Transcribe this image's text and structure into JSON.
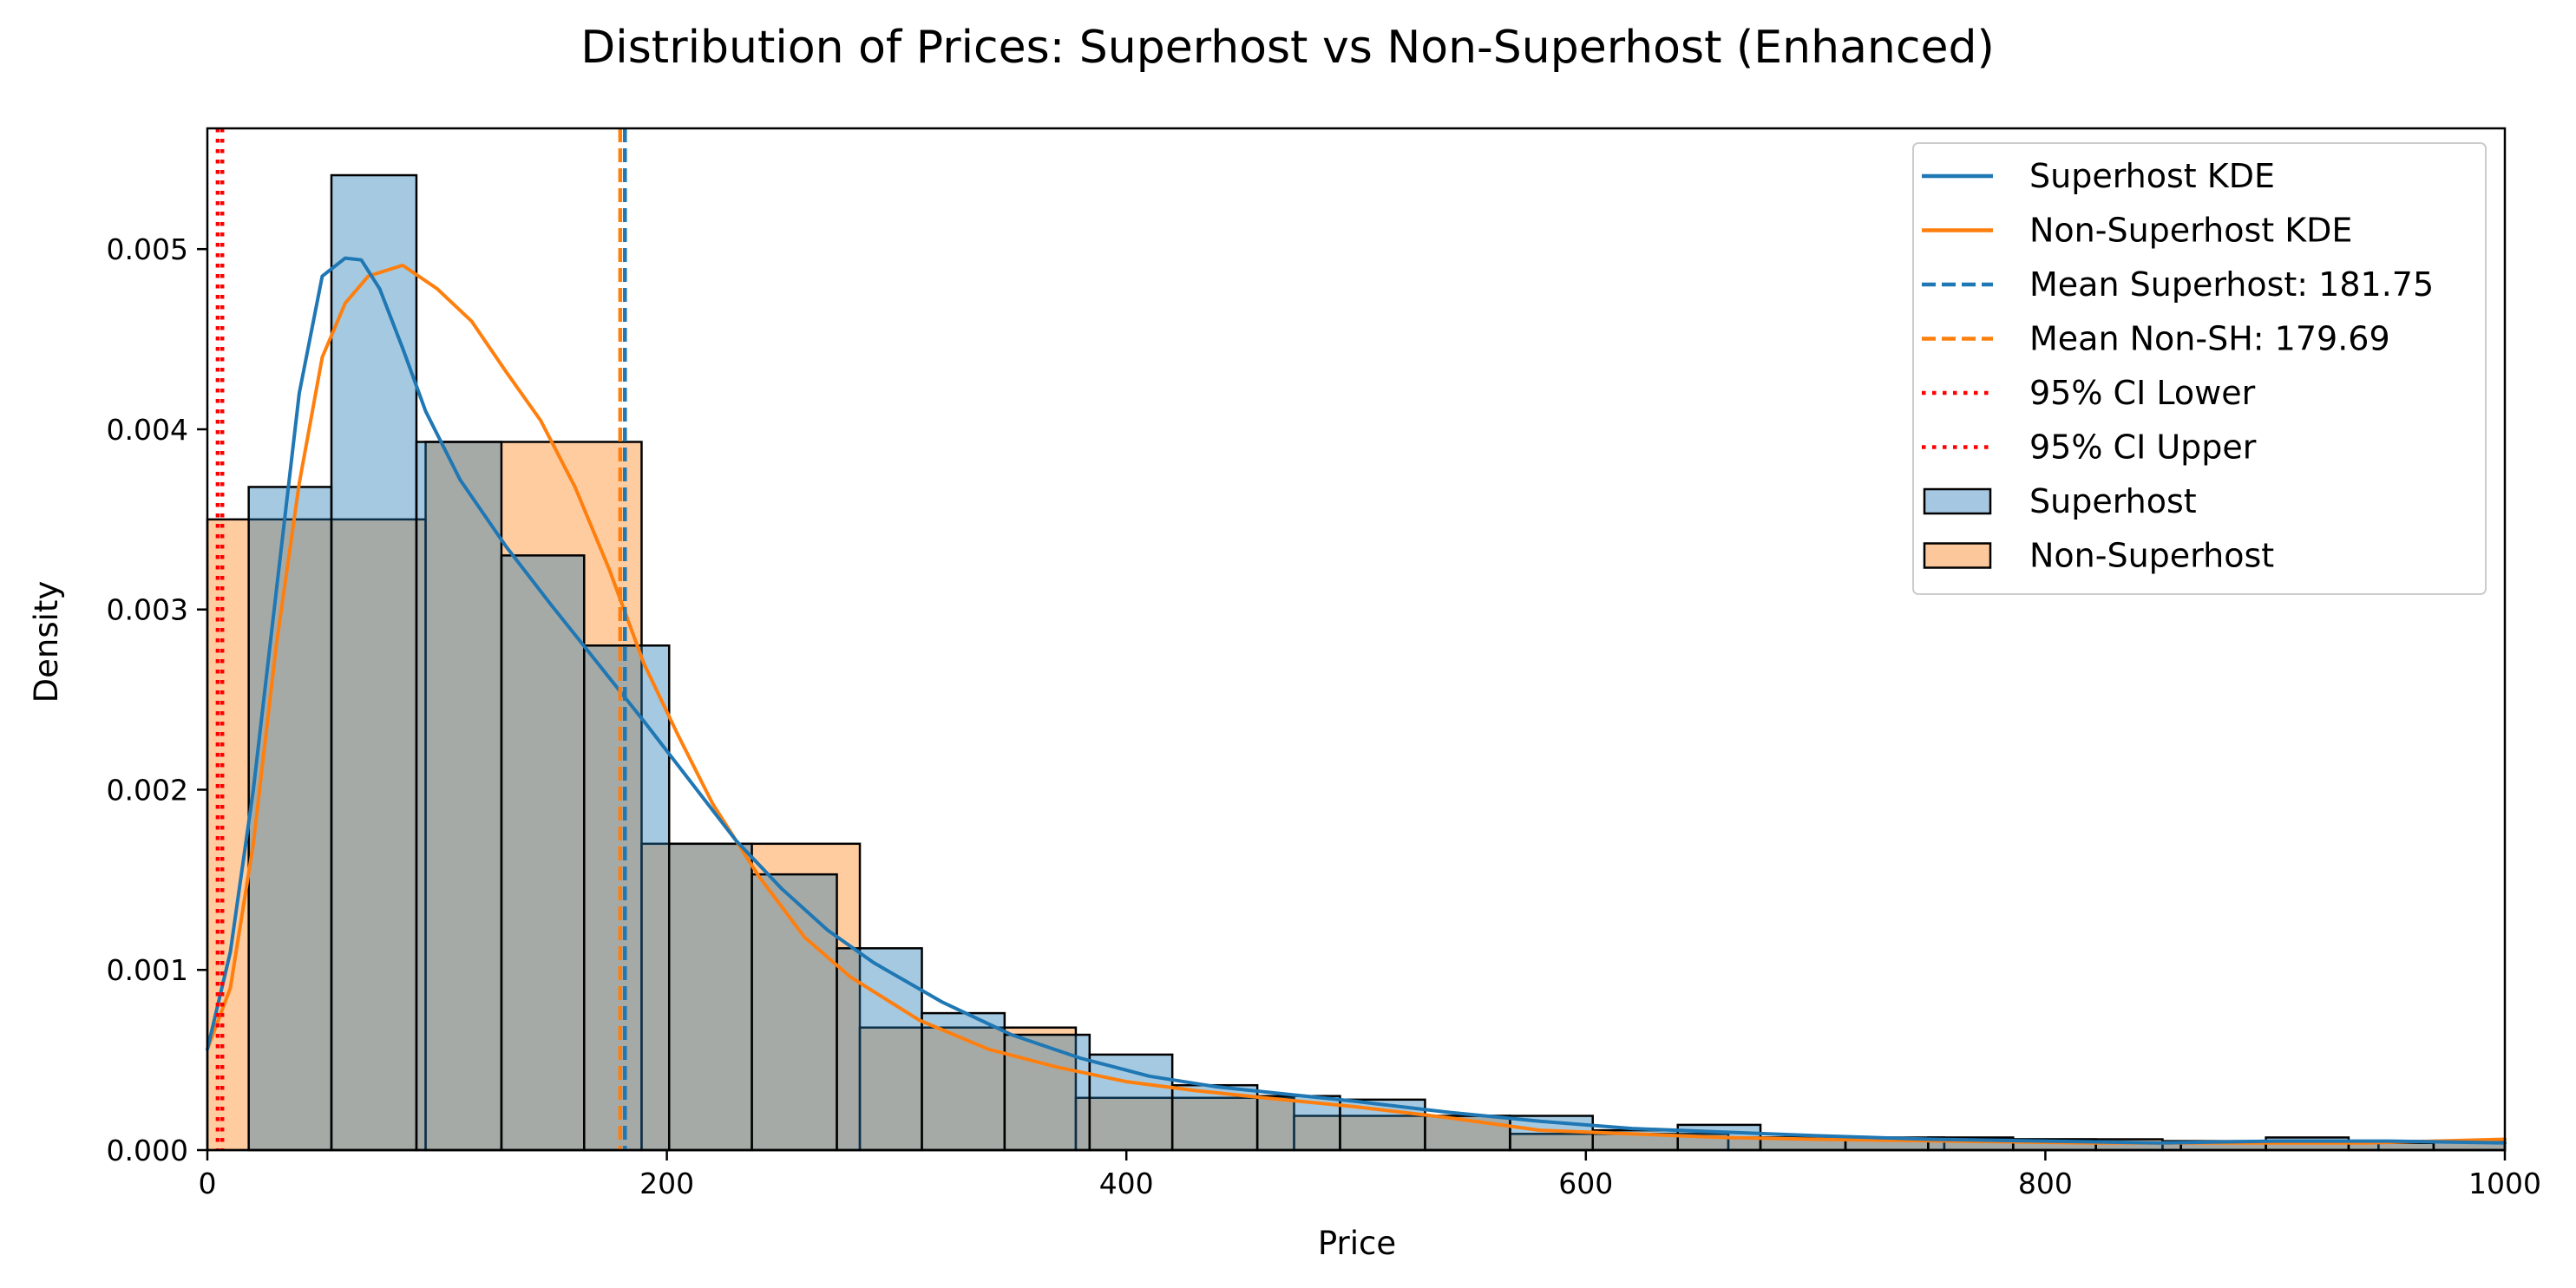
{
  "chart_data": {
    "type": "histogram",
    "title": "Distribution of Prices: Superhost vs Non-Superhost (Enhanced)",
    "xlabel": "Price",
    "ylabel": "Density",
    "xlim": [
      0,
      1000
    ],
    "ylim": [
      0,
      0.00567
    ],
    "xticks": [
      0,
      200,
      400,
      600,
      800,
      1000
    ],
    "xtick_labels": [
      "0",
      "200",
      "400",
      "600",
      "800",
      "1000"
    ],
    "yticks": [
      0,
      0.001,
      0.002,
      0.003,
      0.004,
      0.005
    ],
    "ytick_labels": [
      "0.000",
      "0.001",
      "0.002",
      "0.003",
      "0.004",
      "0.005"
    ],
    "grid": false,
    "legend_position": "top-right",
    "colors": {
      "superhost": "#1f77b4",
      "non_superhost": "#ff7f0e",
      "superhost_fill": "#a6c7e1",
      "non_superhost_fill": "#fcc89b",
      "ci": "#ff0000"
    },
    "histograms": [
      {
        "name": "Superhost",
        "bins": [
          {
            "x0": 18,
            "x1": 54,
            "density": 0.00368
          },
          {
            "x0": 54,
            "x1": 91,
            "density": 0.00541
          },
          {
            "x0": 91,
            "x1": 128,
            "density": 0.00393
          },
          {
            "x0": 128,
            "x1": 164,
            "density": 0.0033
          },
          {
            "x0": 164,
            "x1": 201,
            "density": 0.0028
          },
          {
            "x0": 201,
            "x1": 237,
            "density": 0.0017
          },
          {
            "x0": 237,
            "x1": 274,
            "density": 0.00153
          },
          {
            "x0": 274,
            "x1": 311,
            "density": 0.00112
          },
          {
            "x0": 311,
            "x1": 347,
            "density": 0.00076
          },
          {
            "x0": 347,
            "x1": 384,
            "density": 0.00064
          },
          {
            "x0": 384,
            "x1": 420,
            "density": 0.00053
          },
          {
            "x0": 420,
            "x1": 457,
            "density": 0.00036
          },
          {
            "x0": 457,
            "x1": 493,
            "density": 0.0003
          },
          {
            "x0": 493,
            "x1": 530,
            "density": 0.00028
          },
          {
            "x0": 530,
            "x1": 567,
            "density": 0.00019
          },
          {
            "x0": 567,
            "x1": 603,
            "density": 0.00019
          },
          {
            "x0": 603,
            "x1": 640,
            "density": 0.00011
          },
          {
            "x0": 640,
            "x1": 676,
            "density": 0.00014
          },
          {
            "x0": 676,
            "x1": 713,
            "density": 7e-05
          },
          {
            "x0": 713,
            "x1": 749,
            "density": 6e-05
          },
          {
            "x0": 749,
            "x1": 786,
            "density": 7e-05
          },
          {
            "x0": 786,
            "x1": 822,
            "density": 6e-05
          },
          {
            "x0": 822,
            "x1": 859,
            "density": 4e-05
          },
          {
            "x0": 859,
            "x1": 896,
            "density": 4e-05
          },
          {
            "x0": 896,
            "x1": 932,
            "density": 7e-05
          },
          {
            "x0": 932,
            "x1": 969,
            "density": 4e-05
          },
          {
            "x0": 969,
            "x1": 1005,
            "density": 5e-05
          }
        ]
      },
      {
        "name": "Non-Superhost",
        "bins": [
          {
            "x0": 0,
            "x1": 95,
            "density": 0.0035
          },
          {
            "x0": 95,
            "x1": 189,
            "density": 0.00393
          },
          {
            "x0": 189,
            "x1": 284,
            "density": 0.0017
          },
          {
            "x0": 284,
            "x1": 378,
            "density": 0.00068
          },
          {
            "x0": 378,
            "x1": 473,
            "density": 0.00029
          },
          {
            "x0": 473,
            "x1": 567,
            "density": 0.00019
          },
          {
            "x0": 567,
            "x1": 662,
            "density": 9e-05
          },
          {
            "x0": 662,
            "x1": 756,
            "density": 7e-05
          },
          {
            "x0": 756,
            "x1": 851,
            "density": 6e-05
          },
          {
            "x0": 851,
            "x1": 945,
            "density": 5e-05
          },
          {
            "x0": 945,
            "x1": 1040,
            "density": 5e-05
          }
        ]
      }
    ],
    "kde": [
      {
        "name": "Superhost KDE",
        "x": [
          0,
          10,
          20,
          30,
          40,
          50,
          60,
          67,
          75,
          85,
          95,
          110,
          130,
          150,
          170,
          190,
          210,
          230,
          250,
          270,
          290,
          320,
          350,
          380,
          410,
          440,
          470,
          500,
          540,
          580,
          620,
          660,
          700,
          750,
          800,
          850,
          900,
          950,
          1000
        ],
        "y": [
          0.00056,
          0.0011,
          0.002,
          0.0031,
          0.0042,
          0.00485,
          0.00495,
          0.00494,
          0.00478,
          0.00445,
          0.0041,
          0.00372,
          0.00335,
          0.00302,
          0.0027,
          0.00238,
          0.00205,
          0.00172,
          0.00145,
          0.00122,
          0.00104,
          0.00082,
          0.00064,
          0.00051,
          0.00041,
          0.00035,
          0.00031,
          0.00027,
          0.00021,
          0.00016,
          0.00012,
          0.0001,
          8e-05,
          6e-05,
          5e-05,
          4e-05,
          5e-05,
          5e-05,
          4e-05
        ]
      },
      {
        "name": "Non-Superhost KDE",
        "x": [
          0,
          10,
          20,
          30,
          40,
          50,
          60,
          70,
          85,
          100,
          115,
          130,
          145,
          160,
          175,
          190,
          205,
          220,
          240,
          260,
          280,
          310,
          340,
          370,
          400,
          430,
          460,
          500,
          540,
          580,
          620,
          660,
          700,
          760,
          820,
          880,
          940,
          1000
        ],
        "y": [
          0.00056,
          0.0009,
          0.0017,
          0.0028,
          0.0037,
          0.0044,
          0.0047,
          0.00485,
          0.00491,
          0.00478,
          0.0046,
          0.00432,
          0.00405,
          0.00368,
          0.00322,
          0.0027,
          0.0023,
          0.00192,
          0.00152,
          0.00118,
          0.00096,
          0.00072,
          0.00056,
          0.00046,
          0.00038,
          0.00033,
          0.00029,
          0.00024,
          0.00018,
          0.00011,
          9e-05,
          7e-05,
          6e-05,
          5e-05,
          4e-05,
          4e-05,
          4e-05,
          6e-05
        ]
      }
    ],
    "vlines": [
      {
        "name": "Mean Superhost: 181.75",
        "x": 181.75,
        "style": "dashed",
        "color": "#1f77b4"
      },
      {
        "name": "Mean Non-SH: 179.69",
        "x": 179.69,
        "style": "dashed",
        "color": "#ff7f0e"
      },
      {
        "name": "95% CI Lower",
        "x": 4.5,
        "style": "dotted",
        "color": "#ff0000"
      },
      {
        "name": "95% CI Upper",
        "x": 6.5,
        "style": "dotted",
        "color": "#ff0000"
      }
    ],
    "legend": [
      {
        "label": "Superhost KDE",
        "kind": "line",
        "color": "#1f77b4",
        "style": "solid"
      },
      {
        "label": "Non-Superhost KDE",
        "kind": "line",
        "color": "#ff7f0e",
        "style": "solid"
      },
      {
        "label": "Mean Superhost: 181.75",
        "kind": "line",
        "color": "#1f77b4",
        "style": "dashed"
      },
      {
        "label": "Mean Non-SH: 179.69",
        "kind": "line",
        "color": "#ff7f0e",
        "style": "dashed"
      },
      {
        "label": "95% CI Lower",
        "kind": "line",
        "color": "#ff0000",
        "style": "dotted"
      },
      {
        "label": "95% CI Upper",
        "kind": "line",
        "color": "#ff0000",
        "style": "dotted"
      },
      {
        "label": "Superhost",
        "kind": "patch",
        "color": "#a6c7e1"
      },
      {
        "label": "Non-Superhost",
        "kind": "patch",
        "color": "#fcc89b"
      }
    ]
  }
}
